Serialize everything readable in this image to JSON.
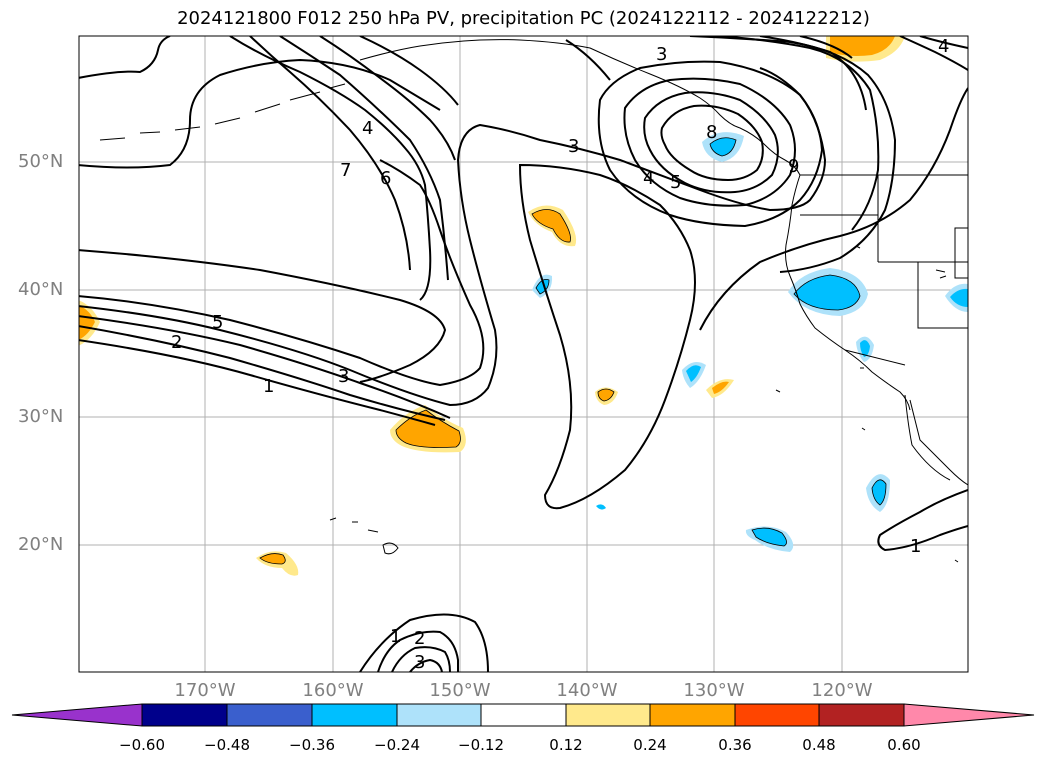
{
  "title": "2024121800 F012 250 hPa PV, precipitation PC (2024122112 - 2024122212)",
  "lat_labels": [
    "50°N",
    "40°N",
    "30°N",
    "20°N"
  ],
  "lon_labels": [
    "170°W",
    "160°W",
    "150°W",
    "140°W",
    "130°W",
    "120°W"
  ],
  "colorbar": {
    "ticks": [
      "−0.60",
      "−0.48",
      "−0.36",
      "−0.24",
      "−0.12",
      "0.12",
      "0.24",
      "0.36",
      "0.48",
      "0.60"
    ],
    "colors": [
      "#9932cc",
      "#00008b",
      "#3a5fcd",
      "#00bfff",
      "#aee2fa",
      "#ffffff",
      "#ffe98c",
      "#ffa500",
      "#ff4500",
      "#b22222",
      "#ff88aa"
    ]
  },
  "contour_labels": [
    "1",
    "2",
    "3",
    "5",
    "3",
    "4",
    "6",
    "7",
    "4",
    "5",
    "3",
    "8",
    "1",
    "2",
    "3",
    "1",
    "4",
    "9"
  ],
  "shading_colors": {
    "orange": "#ffa500",
    "light_yellow": "#ffe98c",
    "cyan": "#00bfff",
    "light_blue": "#aee2fa"
  }
}
